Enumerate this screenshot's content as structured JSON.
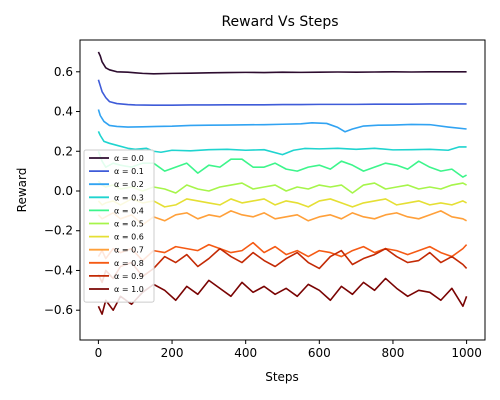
{
  "chart_data": {
    "type": "line",
    "title": "Reward Vs Steps",
    "xlabel": "Steps",
    "ylabel": "Reward",
    "xlim": [
      -50,
      1050
    ],
    "ylim": [
      -0.75,
      0.76
    ],
    "xticks": [
      0,
      200,
      400,
      600,
      800,
      1000
    ],
    "yticks": [
      -0.6,
      -0.4,
      -0.2,
      0.0,
      0.2,
      0.4,
      0.6
    ],
    "xtick_labels": [
      "0",
      "200",
      "400",
      "600",
      "800",
      "1000"
    ],
    "ytick_labels": [
      "−0.6",
      "−0.4",
      "−0.2",
      "0.0",
      "0.2",
      "0.4",
      "0.6"
    ],
    "legend_position": "lower-left",
    "series": [
      {
        "name": "α = 0.0",
        "color": "#2d0c2f",
        "x": [
          0,
          5,
          10,
          20,
          30,
          50,
          80,
          100,
          120,
          150,
          200,
          250,
          300,
          350,
          400,
          450,
          500,
          550,
          600,
          650,
          700,
          750,
          800,
          850,
          900,
          950,
          1000
        ],
        "y": [
          0.7,
          0.68,
          0.65,
          0.62,
          0.61,
          0.6,
          0.598,
          0.595,
          0.592,
          0.59,
          0.592,
          0.593,
          0.595,
          0.596,
          0.597,
          0.596,
          0.598,
          0.597,
          0.598,
          0.599,
          0.598,
          0.599,
          0.6,
          0.599,
          0.6,
          0.6,
          0.6
        ]
      },
      {
        "name": "α = 0.1",
        "color": "#3e5bd8",
        "x": [
          0,
          5,
          10,
          20,
          30,
          50,
          80,
          100,
          150,
          200,
          250,
          300,
          350,
          400,
          450,
          500,
          550,
          600,
          650,
          700,
          750,
          800,
          850,
          900,
          950,
          1000
        ],
        "y": [
          0.56,
          0.53,
          0.5,
          0.47,
          0.45,
          0.44,
          0.435,
          0.433,
          0.432,
          0.432,
          0.433,
          0.433,
          0.434,
          0.434,
          0.434,
          0.435,
          0.435,
          0.436,
          0.436,
          0.436,
          0.437,
          0.437,
          0.437,
          0.438,
          0.438,
          0.438
        ]
      },
      {
        "name": "α = 0.2",
        "color": "#31a3f2",
        "x": [
          0,
          5,
          15,
          30,
          50,
          80,
          120,
          160,
          200,
          250,
          300,
          350,
          400,
          450,
          500,
          550,
          580,
          620,
          650,
          670,
          690,
          720,
          760,
          800,
          850,
          900,
          950,
          1000
        ],
        "y": [
          0.41,
          0.38,
          0.35,
          0.33,
          0.325,
          0.322,
          0.323,
          0.325,
          0.326,
          0.33,
          0.331,
          0.332,
          0.333,
          0.334,
          0.336,
          0.338,
          0.343,
          0.34,
          0.32,
          0.298,
          0.312,
          0.327,
          0.331,
          0.332,
          0.335,
          0.334,
          0.322,
          0.312
        ]
      },
      {
        "name": "α = 0.3",
        "color": "#1fd4cf",
        "x": [
          0,
          5,
          15,
          30,
          50,
          80,
          100,
          130,
          150,
          170,
          200,
          250,
          300,
          350,
          400,
          450,
          500,
          530,
          560,
          600,
          650,
          700,
          750,
          800,
          850,
          900,
          950,
          980,
          1000
        ],
        "y": [
          0.3,
          0.28,
          0.25,
          0.24,
          0.23,
          0.215,
          0.21,
          0.215,
          0.2,
          0.195,
          0.205,
          0.202,
          0.208,
          0.21,
          0.205,
          0.208,
          0.183,
          0.205,
          0.214,
          0.212,
          0.215,
          0.21,
          0.215,
          0.207,
          0.208,
          0.21,
          0.205,
          0.222,
          0.222
        ]
      },
      {
        "name": "α = 0.4",
        "color": "#3df58b",
        "x": [
          0,
          10,
          20,
          40,
          60,
          90,
          120,
          150,
          180,
          210,
          240,
          270,
          300,
          330,
          360,
          390,
          420,
          450,
          480,
          510,
          540,
          570,
          600,
          630,
          660,
          690,
          720,
          750,
          780,
          810,
          840,
          870,
          900,
          930,
          960,
          990,
          1000
        ],
        "y": [
          0.2,
          0.15,
          0.12,
          0.14,
          0.13,
          0.12,
          0.14,
          0.14,
          0.1,
          0.12,
          0.14,
          0.09,
          0.13,
          0.12,
          0.16,
          0.16,
          0.12,
          0.12,
          0.14,
          0.11,
          0.1,
          0.12,
          0.13,
          0.11,
          0.15,
          0.13,
          0.1,
          0.12,
          0.14,
          0.13,
          0.11,
          0.15,
          0.12,
          0.1,
          0.11,
          0.07,
          0.08
        ]
      },
      {
        "name": "α = 0.5",
        "color": "#a6f54a",
        "x": [
          0,
          10,
          20,
          40,
          60,
          90,
          120,
          150,
          180,
          210,
          240,
          270,
          300,
          330,
          360,
          390,
          420,
          450,
          480,
          510,
          540,
          570,
          600,
          630,
          660,
          690,
          720,
          750,
          780,
          810,
          840,
          870,
          900,
          930,
          960,
          990,
          1000
        ],
        "y": [
          0.05,
          0.03,
          0.02,
          0.03,
          0.01,
          0.02,
          0.0,
          0.02,
          0.01,
          -0.01,
          0.03,
          0.01,
          0.0,
          0.02,
          0.03,
          0.04,
          0.01,
          0.02,
          0.03,
          0.0,
          0.02,
          0.01,
          0.03,
          0.02,
          0.03,
          -0.01,
          0.03,
          0.04,
          0.01,
          0.02,
          0.03,
          0.01,
          0.02,
          0.01,
          0.03,
          0.04,
          0.03
        ]
      },
      {
        "name": "α = 0.6",
        "color": "#e5df34",
        "x": [
          0,
          10,
          20,
          40,
          60,
          90,
          120,
          150,
          180,
          210,
          240,
          270,
          300,
          330,
          360,
          390,
          420,
          450,
          480,
          510,
          540,
          570,
          600,
          630,
          660,
          690,
          720,
          750,
          780,
          810,
          840,
          870,
          900,
          930,
          960,
          990,
          1000
        ],
        "y": [
          -0.05,
          -0.07,
          -0.06,
          -0.05,
          -0.07,
          -0.04,
          -0.06,
          -0.05,
          -0.08,
          -0.07,
          -0.04,
          -0.05,
          -0.06,
          -0.07,
          -0.04,
          -0.06,
          -0.05,
          -0.04,
          -0.07,
          -0.05,
          -0.06,
          -0.08,
          -0.05,
          -0.04,
          -0.06,
          -0.08,
          -0.06,
          -0.05,
          -0.04,
          -0.07,
          -0.06,
          -0.05,
          -0.07,
          -0.06,
          -0.07,
          -0.05,
          -0.06
        ]
      },
      {
        "name": "α = 0.7",
        "color": "#ffa03a",
        "x": [
          0,
          10,
          20,
          40,
          60,
          90,
          120,
          150,
          180,
          210,
          240,
          270,
          300,
          330,
          360,
          390,
          420,
          450,
          480,
          510,
          540,
          570,
          600,
          630,
          660,
          690,
          720,
          750,
          780,
          810,
          840,
          870,
          900,
          930,
          960,
          990,
          1000
        ],
        "y": [
          -0.12,
          -0.14,
          -0.13,
          -0.11,
          -0.14,
          -0.12,
          -0.17,
          -0.13,
          -0.15,
          -0.12,
          -0.11,
          -0.14,
          -0.12,
          -0.13,
          -0.1,
          -0.12,
          -0.13,
          -0.11,
          -0.14,
          -0.13,
          -0.12,
          -0.15,
          -0.13,
          -0.12,
          -0.14,
          -0.11,
          -0.13,
          -0.14,
          -0.12,
          -0.11,
          -0.13,
          -0.14,
          -0.12,
          -0.1,
          -0.13,
          -0.14,
          -0.15
        ]
      },
      {
        "name": "α = 0.8",
        "color": "#f55a14",
        "x": [
          0,
          10,
          20,
          40,
          60,
          90,
          120,
          150,
          180,
          210,
          240,
          270,
          300,
          330,
          360,
          390,
          420,
          450,
          480,
          510,
          540,
          570,
          600,
          630,
          660,
          690,
          720,
          750,
          780,
          810,
          840,
          870,
          900,
          930,
          960,
          990,
          1000
        ],
        "y": [
          -0.33,
          -0.3,
          -0.34,
          -0.29,
          -0.31,
          -0.29,
          -0.35,
          -0.3,
          -0.31,
          -0.28,
          -0.29,
          -0.3,
          -0.27,
          -0.29,
          -0.31,
          -0.3,
          -0.26,
          -0.31,
          -0.28,
          -0.32,
          -0.3,
          -0.33,
          -0.3,
          -0.31,
          -0.33,
          -0.3,
          -0.28,
          -0.31,
          -0.29,
          -0.3,
          -0.32,
          -0.3,
          -0.28,
          -0.31,
          -0.33,
          -0.29,
          -0.27
        ]
      },
      {
        "name": "α = 0.9",
        "color": "#c32a05",
        "x": [
          0,
          10,
          20,
          40,
          60,
          90,
          120,
          150,
          180,
          210,
          240,
          270,
          300,
          330,
          360,
          390,
          420,
          450,
          480,
          510,
          540,
          570,
          600,
          630,
          660,
          690,
          720,
          750,
          780,
          810,
          840,
          870,
          900,
          930,
          960,
          990,
          1000
        ],
        "y": [
          -0.42,
          -0.46,
          -0.4,
          -0.44,
          -0.38,
          -0.36,
          -0.43,
          -0.39,
          -0.33,
          -0.36,
          -0.32,
          -0.38,
          -0.34,
          -0.29,
          -0.33,
          -0.36,
          -0.31,
          -0.35,
          -0.38,
          -0.34,
          -0.31,
          -0.36,
          -0.39,
          -0.33,
          -0.3,
          -0.37,
          -0.34,
          -0.32,
          -0.29,
          -0.33,
          -0.36,
          -0.35,
          -0.31,
          -0.36,
          -0.33,
          -0.37,
          -0.39
        ]
      },
      {
        "name": "α = 1.0",
        "color": "#7a0403",
        "x": [
          0,
          10,
          20,
          40,
          60,
          90,
          120,
          150,
          180,
          210,
          240,
          270,
          300,
          330,
          360,
          390,
          420,
          450,
          480,
          510,
          540,
          570,
          600,
          630,
          660,
          690,
          720,
          750,
          780,
          810,
          840,
          870,
          900,
          930,
          960,
          990,
          1000
        ],
        "y": [
          -0.58,
          -0.62,
          -0.55,
          -0.6,
          -0.53,
          -0.57,
          -0.51,
          -0.47,
          -0.5,
          -0.55,
          -0.48,
          -0.52,
          -0.45,
          -0.49,
          -0.53,
          -0.46,
          -0.51,
          -0.48,
          -0.52,
          -0.49,
          -0.53,
          -0.47,
          -0.5,
          -0.55,
          -0.48,
          -0.52,
          -0.46,
          -0.5,
          -0.44,
          -0.49,
          -0.53,
          -0.5,
          -0.51,
          -0.55,
          -0.49,
          -0.58,
          -0.53
        ]
      }
    ]
  }
}
